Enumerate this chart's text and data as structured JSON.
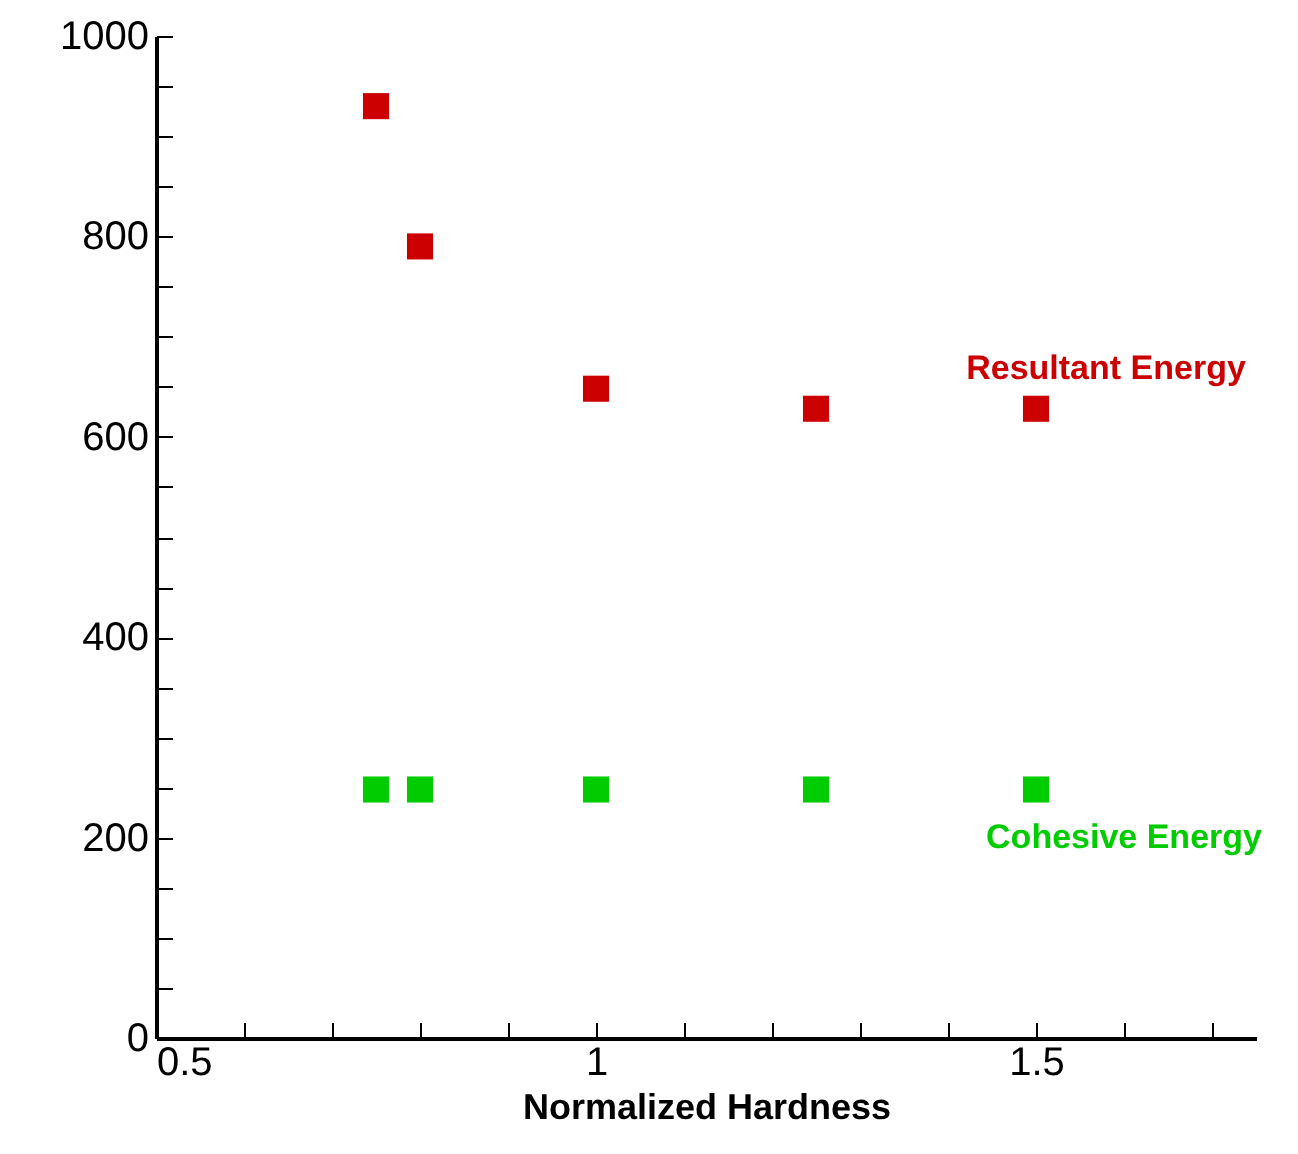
{
  "chart_data": {
    "type": "scatter",
    "xlabel": "Normalized Hardness",
    "marker": "square",
    "grid": false,
    "legend": false,
    "x": [
      0.75,
      0.8,
      1,
      1.25,
      1.5
    ],
    "series": [
      {
        "name": "Resultant Energy",
        "color": "#cc0000",
        "values": [
          930,
          790,
          648,
          628,
          628
        ]
      },
      {
        "name": "Cohesive Energy",
        "color": "#00cc00",
        "values": [
          248,
          248,
          248,
          248,
          248
        ]
      }
    ],
    "xlim": [
      0.5,
      1.75
    ],
    "xticks": [
      0.5,
      {
        "value": 0.6,
        "label": null
      },
      {
        "value": 0.7,
        "label": null
      },
      {
        "value": 0.8,
        "label": null
      },
      {
        "value": 0.9,
        "label": null
      },
      1,
      {
        "value": 1.1,
        "label": null
      },
      {
        "value": 1.2,
        "label": null
      },
      {
        "value": 1.3,
        "label": null
      },
      {
        "value": 1.4,
        "label": null
      },
      1.5,
      {
        "value": 1.6,
        "label": null
      },
      {
        "value": 1.7,
        "label": null
      }
    ],
    "ylim": [
      0,
      1000
    ],
    "yticks": [
      0,
      {
        "value": 50,
        "label": null
      },
      {
        "value": 100,
        "label": null
      },
      {
        "value": 150,
        "label": null
      },
      200,
      {
        "value": 250,
        "label": null
      },
      {
        "value": 300,
        "label": null
      },
      {
        "value": 350,
        "label": null
      },
      400,
      {
        "value": 450,
        "label": null
      },
      {
        "value": 500,
        "label": null
      },
      {
        "value": 550,
        "label": null
      },
      600,
      {
        "value": 650,
        "label": null
      },
      {
        "value": 700,
        "label": null
      },
      {
        "value": 750,
        "label": null
      },
      800,
      {
        "value": 850,
        "label": null
      },
      {
        "value": 900,
        "label": null
      },
      {
        "value": 950,
        "label": null
      },
      1000
    ]
  }
}
